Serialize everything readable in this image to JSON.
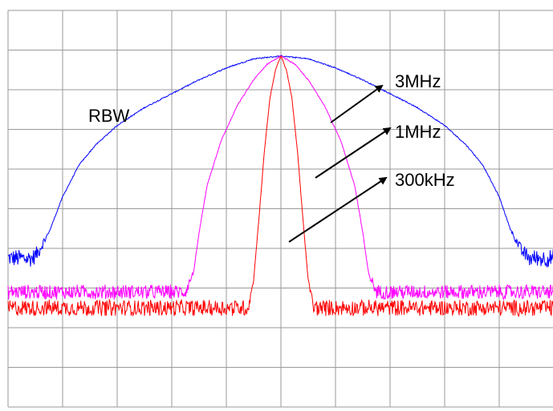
{
  "chart_data": {
    "type": "line",
    "title": "",
    "xlabel": "",
    "ylabel": "",
    "grid": true,
    "grid_divisions": {
      "x": 10,
      "y": 10
    },
    "xlim": [
      -5,
      5
    ],
    "ylim": [
      -10,
      0
    ],
    "annotation": "RBW",
    "series": [
      {
        "name": "3MHz",
        "color": "#0000ff",
        "noise_floor": -6.25,
        "noise_amplitude": 0.22,
        "x": [
          -5,
          -4.55,
          -4.45,
          -4.25,
          -4.0,
          -3.7,
          -3.4,
          -3.0,
          -2.5,
          -2.0,
          -1.5,
          -1.0,
          -0.5,
          0,
          0.5,
          1.0,
          1.5,
          2.0,
          2.5,
          3.0,
          3.4,
          3.7,
          4.0,
          4.2,
          4.4,
          4.55,
          5
        ],
        "y": [
          -6.25,
          -6.25,
          -6.1,
          -5.6,
          -4.7,
          -3.9,
          -3.4,
          -2.9,
          -2.45,
          -2.1,
          -1.75,
          -1.45,
          -1.22,
          -1.15,
          -1.22,
          -1.45,
          -1.75,
          -2.1,
          -2.45,
          -2.9,
          -3.4,
          -3.9,
          -4.7,
          -5.5,
          -6.05,
          -6.25,
          -6.25
        ]
      },
      {
        "name": "1MHz",
        "color": "#ff00ff",
        "noise_floor": -7.1,
        "noise_amplitude": 0.18,
        "x": [
          -5,
          -1.75,
          -1.6,
          -1.5,
          -1.35,
          -1.1,
          -0.8,
          -0.5,
          -0.25,
          0,
          0.25,
          0.5,
          0.8,
          1.1,
          1.35,
          1.5,
          1.6,
          1.75,
          5
        ],
        "y": [
          -7.1,
          -7.1,
          -6.6,
          -5.6,
          -4.4,
          -3.3,
          -2.4,
          -1.75,
          -1.35,
          -1.15,
          -1.35,
          -1.75,
          -2.4,
          -3.3,
          -4.4,
          -5.6,
          -6.6,
          -7.1,
          -7.1
        ]
      },
      {
        "name": "300kHz",
        "color": "#ff0000",
        "noise_floor": -7.5,
        "noise_amplitude": 0.2,
        "x": [
          -5,
          -0.6,
          -0.5,
          -0.4,
          -0.3,
          -0.2,
          -0.1,
          0,
          0.1,
          0.2,
          0.3,
          0.4,
          0.5,
          0.6,
          5
        ],
        "y": [
          -7.5,
          -7.5,
          -6.8,
          -5.2,
          -3.5,
          -2.2,
          -1.5,
          -1.15,
          -1.5,
          -2.2,
          -3.5,
          -5.2,
          -6.8,
          -7.5,
          -7.5
        ]
      }
    ]
  }
}
